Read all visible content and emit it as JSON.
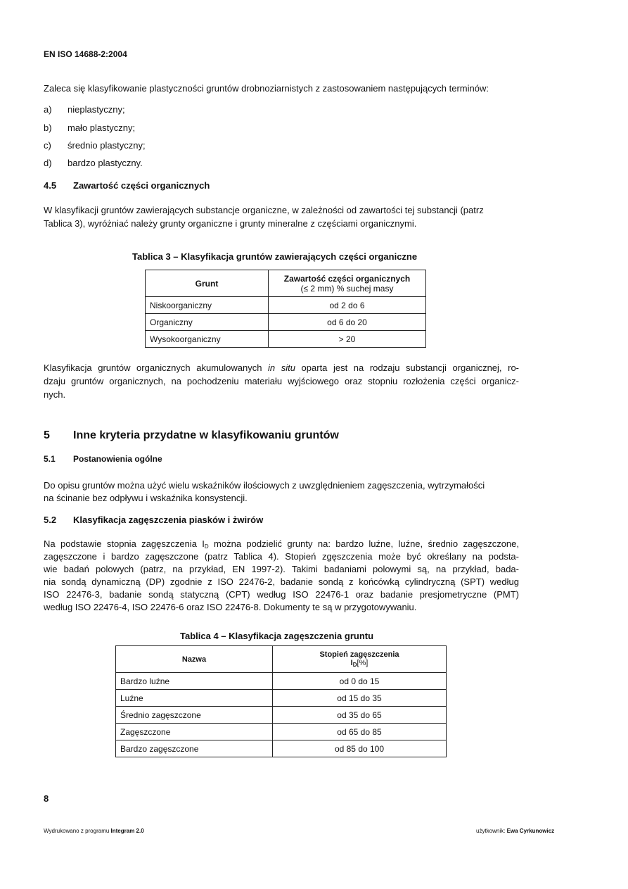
{
  "header": {
    "doc_id": "EN ISO 14688-2:2004"
  },
  "intro": "Zaleca się klasyfikowanie plastyczności gruntów drobnoziarnistych z zastosowaniem następujących terminów:",
  "list": [
    {
      "marker": "a)",
      "text": "nieplastyczny;"
    },
    {
      "marker": "b)",
      "text": "mało plastyczny;"
    },
    {
      "marker": "c)",
      "text": "średnio plastyczny;"
    },
    {
      "marker": "d)",
      "text": "bardzo plastyczny."
    }
  ],
  "s45": {
    "num": "4.5",
    "title": "Zawartość części organicznych",
    "lines": [
      "W klasyfikacji gruntów zawierających substancje organiczne, w zależności od zawartości tej substancji (patrz",
      "Tablica 3), wyróżniać należy grunty organiczne i grunty mineralne z częściami organicznymi."
    ]
  },
  "table3": {
    "caption": "Tablica 3 – Klasyfikacja gruntów zawierających części organiczne",
    "headers": [
      "Grunt",
      "Zawartość części organicznych",
      "(≤ 2 mm) % suchej masy"
    ],
    "rows": [
      [
        "Niskoorganiczny",
        "od 2 do 6"
      ],
      [
        "Organiczny",
        "od 6 do 20"
      ],
      [
        "Wysokoorganiczny",
        "> 20"
      ]
    ]
  },
  "para_insitu": {
    "l1_pre": "Klasyfikacja gruntów organicznych akumulowanych ",
    "l1_italic": "in situ",
    "l1_post": " oparta jest na rodzaju substancji organicznej, ro-",
    "l2": "dzaju gruntów organicznych, na pochodzeniu materiału wyjściowego oraz stopniu rozłożenia części organicz-",
    "l3": "nych."
  },
  "s5": {
    "num": "5",
    "title": "Inne kryteria przydatne w klasyfikowaniu gruntów"
  },
  "s51": {
    "num": "5.1",
    "title": "Postanowienia ogólne",
    "lines": [
      "Do opisu gruntów można użyć wielu wskaźników ilościowych z uwzględnieniem zagęszczenia, wytrzymałości",
      "na ścinanie bez odpływu i wskaźnika konsystencji."
    ]
  },
  "s52": {
    "num": "5.2",
    "title": "Klasyfikacja zagęszczenia piasków i żwirów",
    "l1_pre": "Na podstawie stopnia zagęszczenia I",
    "l1_sub": "D",
    "l1_post": " można podzielić grunty na: bardzo luźne, luźne, średnio zagęszczone,",
    "lines": [
      "zagęszczone i bardzo zagęszczone (patrz Tablica 4). Stopień zgęszczenia może być określany na podsta-",
      "wie badań polowych (patrz, na przykład, EN 1997-2). Takimi badaniami polowymi są, na przykład, bada-",
      "nia sondą dynamiczną (DP) zgodnie z ISO 22476-2, badanie sondą z końcówką cylindryczną (SPT) według",
      "ISO 22476-3, badanie sondą statyczną (CPT) według ISO 22476-1 oraz badanie presjometryczne (PMT)",
      "według ISO 22476-4, ISO 22476-6 oraz ISO 22476-8. Dokumenty te są w przygotowywaniu."
    ]
  },
  "table4": {
    "caption": "Tablica 4 – Klasyfikacja zagęszczenia gruntu",
    "headers": [
      "Nazwa",
      "Stopień zagęszczenia",
      "I",
      "D",
      "[%]"
    ],
    "rows": [
      [
        "Bardzo luźne",
        "od 0 do 15"
      ],
      [
        "Luźne",
        "od 15 do 35"
      ],
      [
        "Średnio zagęszczone",
        "od 35 do 65"
      ],
      [
        "Zagęszczone",
        "od 65 do 85"
      ],
      [
        "Bardzo zagęszczone",
        "od 85 do 100"
      ]
    ]
  },
  "page_number": "8",
  "footer": {
    "left_pre": "Wydrukowano z programu ",
    "left_bold": "Integram 2.0",
    "right_pre": "użytkownik: ",
    "right_bold": "Ewa Cyrkunowicz"
  }
}
